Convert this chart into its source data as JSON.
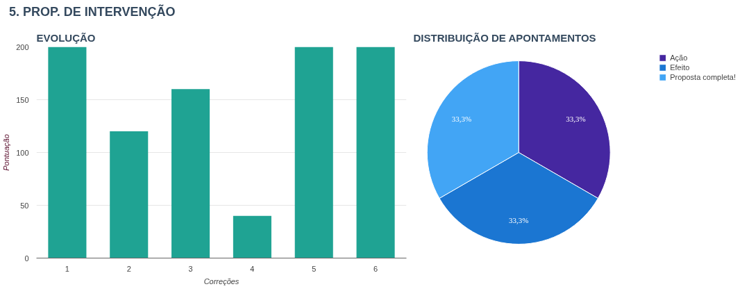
{
  "chart_data": [
    {
      "type": "bar",
      "title": "EVOLUÇÃO",
      "annotations": [
        "5. PROP. DE INTERVENÇÃO"
      ],
      "xlabel": "Correções",
      "ylabel": "Pontuação",
      "categories": [
        "1",
        "2",
        "3",
        "4",
        "5",
        "6"
      ],
      "values": [
        200,
        120,
        160,
        40,
        200,
        200
      ],
      "color": "#1fa393",
      "ylim": [
        0,
        200
      ],
      "yticks": [
        0,
        50,
        100,
        150,
        200
      ],
      "grid": "y"
    },
    {
      "type": "pie",
      "title": "DISTRIBUIÇÃO DE APONTAMENTOS",
      "categories": [
        "Ação",
        "Efeito",
        "Proposta completa!"
      ],
      "values": [
        33.3,
        33.3,
        33.3
      ],
      "colors": [
        "#4527a0",
        "#1b76d2",
        "#42a5f5"
      ],
      "value_labels": [
        "33,3%",
        "33,3%",
        "33,3%"
      ],
      "legend": "top right"
    }
  ]
}
